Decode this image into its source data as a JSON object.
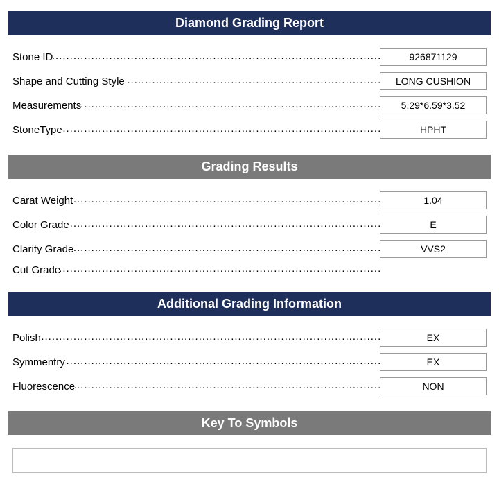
{
  "colors": {
    "navy_bg": "#1e2f5c",
    "gray_bg": "#7a7a7a",
    "header_text": "#ffffff",
    "body_text": "#000000",
    "box_border": "#999999",
    "symbols_border": "#bbbbbb",
    "page_bg": "#ffffff"
  },
  "sections": [
    {
      "title": "Diamond Grading Report",
      "style": "navy",
      "rows": [
        {
          "label": "Stone ID",
          "value": "926871129"
        },
        {
          "label": "Shape and Cutting Style",
          "value": "LONG CUSHION"
        },
        {
          "label": "Measurements",
          "value": "5.29*6.59*3.52"
        },
        {
          "label": "StoneType",
          "value": "HPHT"
        }
      ]
    },
    {
      "title": "Grading Results",
      "style": "gray",
      "rows": [
        {
          "label": "Carat Weight",
          "value": "1.04"
        },
        {
          "label": "Color Grade",
          "value": "E"
        },
        {
          "label": "Clarity Grade",
          "value": "VVS2"
        },
        {
          "label": "Cut Grade",
          "value": ""
        }
      ]
    },
    {
      "title": "Additional Grading Information",
      "style": "navy",
      "rows": [
        {
          "label": "Polish",
          "value": "EX"
        },
        {
          "label": "Symmentry",
          "value": "EX"
        },
        {
          "label": "Fluorescence",
          "value": "NON"
        }
      ]
    },
    {
      "title": "Key To Symbols",
      "style": "gray",
      "rows": []
    }
  ]
}
